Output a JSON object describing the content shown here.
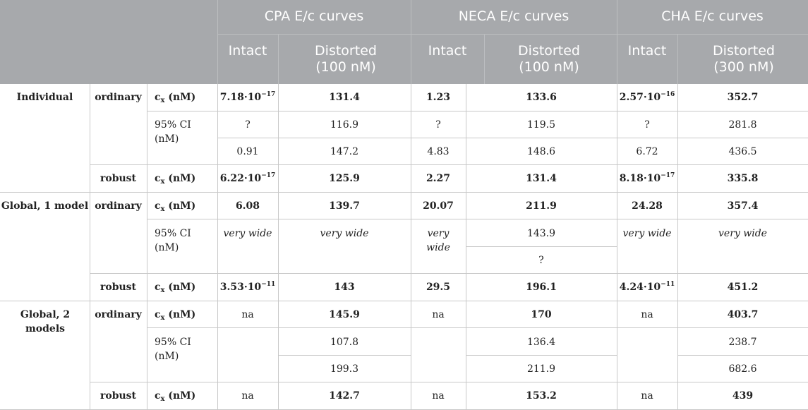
{
  "header": {
    "groups": [
      "CPA E/c curves",
      "NECA E/c curves",
      "CHA E/c curves"
    ],
    "sub": {
      "intact": "Intact",
      "distorted_100": "Distorted (100 nM)",
      "distorted_300": "Distorted (300 nM)"
    }
  },
  "groups": {
    "individual": "Individual",
    "global1": "Global, 1 model",
    "global2": "Global, 2 models"
  },
  "fit": {
    "ordinary": "ordinary",
    "robust": "robust"
  },
  "param": {
    "cx_base": "c",
    "cx_sub": "x",
    "cx_unit": " (nM)",
    "ci": "95% CI (nM)"
  },
  "rows": {
    "ind_ord_cx": {
      "cpa_i_mant": "7.18·10",
      "cpa_i_exp": "−17",
      "cpa_d": "131.4",
      "neca_i": "1.23",
      "neca_d": "133.6",
      "cha_i_mant": "2.57·10",
      "cha_i_exp": "−16",
      "cha_d": "352.7"
    },
    "ind_ord_ci_lo": {
      "cpa_i": "?",
      "cpa_d": "116.9",
      "neca_i": "?",
      "neca_d": "119.5",
      "cha_i": "?",
      "cha_d": "281.8"
    },
    "ind_ord_ci_hi": {
      "cpa_i": "0.91",
      "cpa_d": "147.2",
      "neca_i": "4.83",
      "neca_d": "148.6",
      "cha_i": "6.72",
      "cha_d": "436.5"
    },
    "ind_rob_cx": {
      "cpa_i_mant": "6.22·10",
      "cpa_i_exp": "−17",
      "cpa_d": "125.9",
      "neca_i": "2.27",
      "neca_d": "131.4",
      "cha_i_mant": "8.18·10",
      "cha_i_exp": "−17",
      "cha_d": "335.8"
    },
    "g1_ord_cx": {
      "cpa_i": "6.08",
      "cpa_d": "139.7",
      "neca_i": "20.07",
      "neca_d": "211.9",
      "cha_i": "24.28",
      "cha_d": "357.4"
    },
    "g1_ord_ci": {
      "cpa_i": "very wide",
      "cpa_d": "very wide",
      "neca_i": "very wide",
      "neca_d_lo": "143.9",
      "neca_d_hi": "?",
      "cha_i": "very wide",
      "cha_d": "very wide"
    },
    "g1_rob_cx": {
      "cpa_i_mant": "3.53·10",
      "cpa_i_exp": "−11",
      "cpa_d": "143",
      "neca_i": "29.5",
      "neca_d": "196.1",
      "cha_i_mant": "4.24·10",
      "cha_i_exp": "−11",
      "cha_d": "451.2"
    },
    "g2_ord_cx": {
      "cpa_i": "na",
      "cpa_d": "145.9",
      "neca_i": "na",
      "neca_d": "170",
      "cha_i": "na",
      "cha_d": "403.7"
    },
    "g2_ord_ci_lo": {
      "cpa_d": "107.8",
      "neca_d": "136.4",
      "cha_d": "238.7"
    },
    "g2_ord_ci_hi": {
      "cpa_d": "199.3",
      "neca_d": "211.9",
      "cha_d": "682.6"
    },
    "g2_rob_cx": {
      "cpa_i": "na",
      "cpa_d": "142.7",
      "neca_i": "na",
      "neca_d": "153.2",
      "cha_i": "na",
      "cha_d": "439"
    }
  },
  "colors": {
    "header_bg": "#a7a9ac",
    "header_text": "#ffffff",
    "rule": "#c8c8c8"
  }
}
